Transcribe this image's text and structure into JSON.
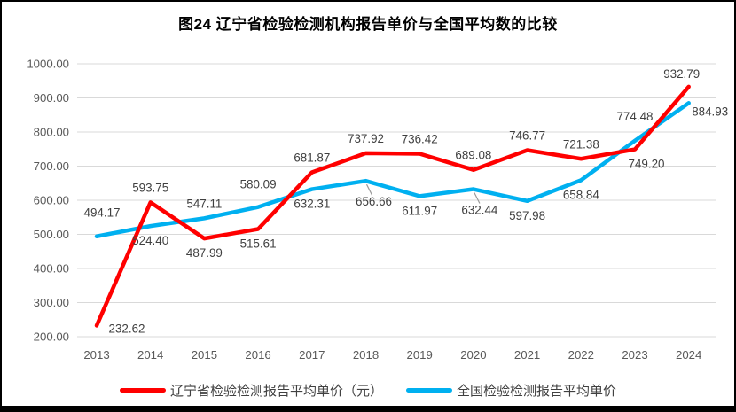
{
  "chart_data": {
    "type": "line",
    "title": "图24 辽宁省检验检测机构报告单价与全国平均数的比较",
    "categories": [
      "2013",
      "2014",
      "2015",
      "2016",
      "2017",
      "2018",
      "2019",
      "2020",
      "2021",
      "2022",
      "2023",
      "2024"
    ],
    "series": [
      {
        "name": "辽宁省检验检测报告平均单价（元）",
        "color": "#FF0000",
        "values": [
          232.62,
          593.75,
          487.99,
          515.61,
          681.87,
          737.92,
          736.42,
          689.08,
          746.77,
          721.38,
          749.2,
          932.79
        ]
      },
      {
        "name": "全国检验检测报告平均单价",
        "color": "#00B0F0",
        "values": [
          494.17,
          524.4,
          547.11,
          580.09,
          632.31,
          656.66,
          611.97,
          632.44,
          597.98,
          658.84,
          774.48,
          884.93
        ]
      }
    ],
    "ylim": [
      200,
      1000
    ],
    "ytick_step": 100,
    "ytick_labels": [
      "200.00",
      "300.00",
      "400.00",
      "500.00",
      "600.00",
      "700.00",
      "800.00",
      "900.00",
      "1000.00"
    ],
    "grid": "horizontal",
    "data_labels": true,
    "label_decimals": 2,
    "legend_position": "bottom",
    "label_leader_categories": [
      "2018",
      "2020"
    ]
  },
  "style": {
    "grid_color": "#D9D9D9",
    "axis_text_color": "#595959",
    "data_label_color": "#404040",
    "leader_line_color": "#999999",
    "frame_border_color": "#000000"
  }
}
